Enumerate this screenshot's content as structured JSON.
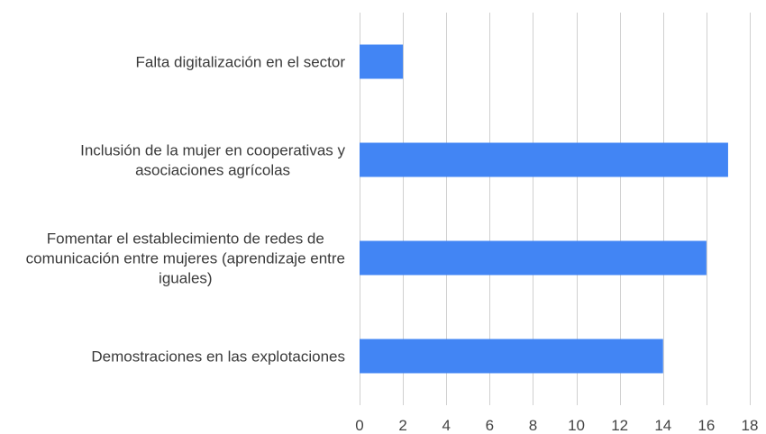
{
  "chart_data": {
    "type": "bar",
    "orientation": "horizontal",
    "categories": [
      "Falta digitalización en el sector",
      "Inclusión de la mujer en cooperativas y asociaciones agrícolas",
      "Fomentar el establecimiento de redes de comunicación entre mujeres (aprendizaje entre iguales)",
      "Demostraciones en las explotaciones"
    ],
    "category_label_lines": [
      [
        "Falta digitalización en el sector"
      ],
      [
        "Inclusión de la mujer en cooperativas y",
        "asociaciones agrícolas"
      ],
      [
        "Fomentar el establecimiento de redes de",
        "comunicación entre mujeres (aprendizaje entre",
        "iguales)"
      ],
      [
        "Demostraciones en las explotaciones"
      ]
    ],
    "values": [
      2,
      17,
      16,
      14
    ],
    "xlim": [
      0,
      18
    ],
    "x_ticks": [
      0,
      2,
      4,
      6,
      8,
      10,
      12,
      14,
      16,
      18
    ],
    "bar_color": "#4285f4",
    "grid": true,
    "legend": "none"
  }
}
